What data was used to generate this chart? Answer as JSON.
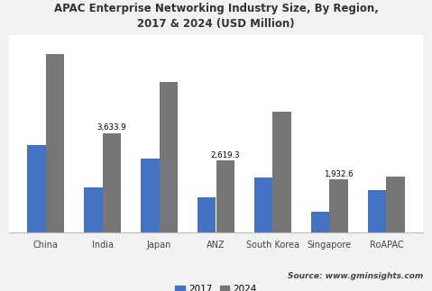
{
  "title": "APAC Enterprise Networking Industry Size, By Region,\n2017 & 2024 (USD Million)",
  "categories": [
    "China",
    "India",
    "Japan",
    "ANZ",
    "South Korea",
    "Singapore",
    "RoAPAC"
  ],
  "values_2017": [
    3200,
    1650,
    2700,
    1300,
    2000,
    780,
    1550
  ],
  "values_2024": [
    6500,
    3633.9,
    5500,
    2619.3,
    4400,
    1932.6,
    2050
  ],
  "labels_2024": [
    "",
    "3,633.9",
    "",
    "2,619.3",
    "",
    "1,932.6",
    ""
  ],
  "color_2017": "#4472c4",
  "color_2024": "#767676",
  "bar_width": 0.32,
  "source_text": "Source: www.gminsights.com",
  "fig_background": "#f2f2f2",
  "plot_background": "#ffffff",
  "footer_background": "#dcdcdc",
  "ylim": [
    0,
    7200
  ],
  "legend_labels": [
    "2017",
    "2024"
  ]
}
